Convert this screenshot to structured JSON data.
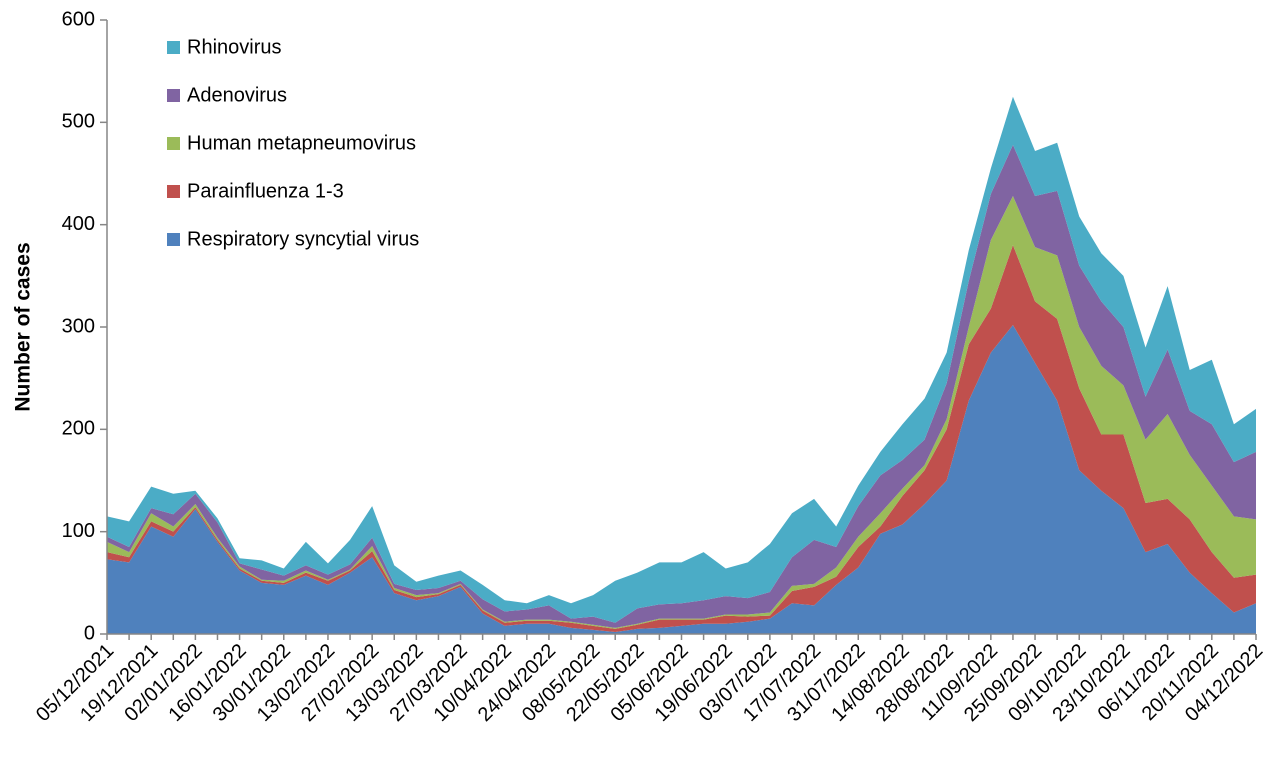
{
  "chart_data": {
    "type": "stacked-area",
    "y_label": "Number of cases",
    "categories": [
      "05/12/2021",
      null,
      "19/12/2021",
      null,
      "02/01/2022",
      null,
      "16/01/2022",
      null,
      "30/01/2022",
      null,
      "13/02/2022",
      null,
      "27/02/2022",
      null,
      "13/03/2022",
      null,
      "27/03/2022",
      null,
      "10/04/2022",
      null,
      "24/04/2022",
      null,
      "08/05/2022",
      null,
      "22/05/2022",
      null,
      "05/06/2022",
      null,
      "19/06/2022",
      null,
      "03/07/2022",
      null,
      "17/07/2022",
      null,
      "31/07/2022",
      null,
      "14/08/2022",
      null,
      "28/08/2022",
      null,
      "11/09/2022",
      null,
      "25/09/2022",
      null,
      "09/10/2022",
      null,
      "23/10/2022",
      null,
      "06/11/2022",
      null,
      "20/11/2022",
      null,
      "04/12/2022"
    ],
    "series": [
      {
        "name": "Respiratory syncytial virus",
        "color": "#4f81bd",
        "values": [
          73,
          70,
          105,
          95,
          122,
          90,
          62,
          50,
          48,
          57,
          48,
          60,
          75,
          40,
          33,
          37,
          46,
          20,
          8,
          10,
          10,
          6,
          4,
          2,
          5,
          6,
          8,
          10,
          10,
          12,
          15,
          30,
          28,
          48,
          65,
          98,
          107,
          127,
          150,
          228,
          275,
          302,
          265,
          228,
          160,
          140,
          123,
          80,
          88,
          60,
          40,
          21,
          30
        ]
      },
      {
        "name": "Parainfluenza 1-3",
        "color": "#c0504d",
        "values": [
          7,
          5,
          5,
          5,
          2,
          2,
          2,
          2,
          2,
          3,
          4,
          2,
          6,
          3,
          3,
          2,
          2,
          3,
          3,
          3,
          3,
          5,
          4,
          3,
          4,
          8,
          6,
          4,
          8,
          5,
          3,
          12,
          18,
          8,
          20,
          7,
          28,
          33,
          50,
          55,
          43,
          78,
          60,
          80,
          80,
          55,
          72,
          48,
          44,
          52,
          40,
          34,
          28
        ]
      },
      {
        "name": "Human metapneumovirus",
        "color": "#9bbb59",
        "values": [
          10,
          5,
          8,
          5,
          3,
          2,
          2,
          1,
          2,
          2,
          1,
          1,
          5,
          2,
          2,
          1,
          1,
          1,
          1,
          1,
          1,
          1,
          1,
          1,
          1,
          1,
          1,
          1,
          1,
          2,
          3,
          5,
          3,
          9,
          10,
          13,
          7,
          5,
          10,
          17,
          67,
          48,
          53,
          62,
          60,
          67,
          48,
          62,
          83,
          63,
          65,
          60,
          54
        ]
      },
      {
        "name": "Adenovirus",
        "color": "#8064a2",
        "values": [
          5,
          5,
          5,
          12,
          10,
          15,
          3,
          10,
          5,
          5,
          5,
          5,
          8,
          4,
          5,
          5,
          3,
          10,
          10,
          10,
          14,
          3,
          8,
          5,
          15,
          14,
          15,
          18,
          18,
          16,
          20,
          28,
          43,
          20,
          30,
          37,
          28,
          25,
          35,
          45,
          45,
          50,
          50,
          63,
          60,
          63,
          57,
          42,
          63,
          43,
          60,
          53,
          66
        ]
      },
      {
        "name": "Rhinovirus",
        "color": "#4bacc6",
        "values": [
          20,
          25,
          21,
          20,
          3,
          4,
          5,
          9,
          7,
          23,
          11,
          24,
          31,
          18,
          8,
          12,
          10,
          14,
          11,
          6,
          10,
          15,
          21,
          41,
          35,
          41,
          40,
          47,
          27,
          35,
          47,
          43,
          40,
          20,
          20,
          23,
          35,
          40,
          30,
          30,
          25,
          47,
          44,
          47,
          48,
          47,
          50,
          48,
          62,
          40,
          63,
          37,
          42
        ]
      }
    ],
    "ylim": [
      0,
      600
    ],
    "yticks": [
      0,
      100,
      200,
      300,
      400,
      500,
      600
    ],
    "legend": "upper-left",
    "legend_order": "reversed",
    "grid": false
  }
}
